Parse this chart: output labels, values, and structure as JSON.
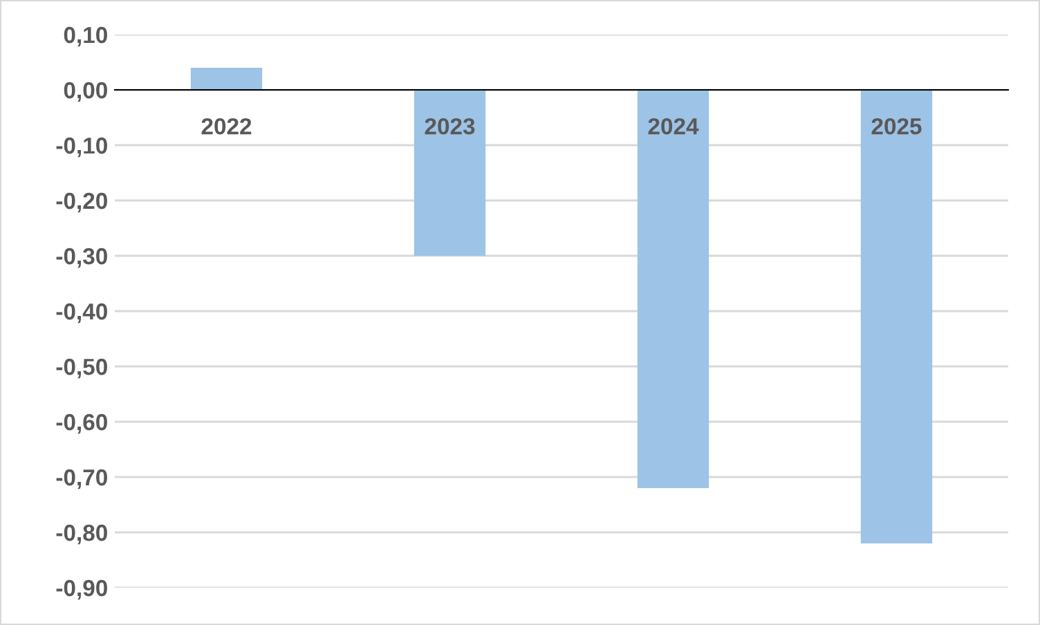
{
  "chart_data": {
    "type": "bar",
    "categories": [
      "2022",
      "2023",
      "2024",
      "2025"
    ],
    "values": [
      0.04,
      -0.3,
      -0.72,
      -0.82
    ],
    "color": "#9dc3e6",
    "ylim": [
      -0.9,
      0.1
    ],
    "yticks": [
      {
        "value": 0.1,
        "label": "0,10"
      },
      {
        "value": 0.0,
        "label": "0,00"
      },
      {
        "value": -0.1,
        "label": "-0,10"
      },
      {
        "value": -0.2,
        "label": "-0,20"
      },
      {
        "value": -0.3,
        "label": "-0,30"
      },
      {
        "value": -0.4,
        "label": "-0,40"
      },
      {
        "value": -0.5,
        "label": "-0,50"
      },
      {
        "value": -0.6,
        "label": "-0,60"
      },
      {
        "value": -0.7,
        "label": "-0,70"
      },
      {
        "value": -0.8,
        "label": "-0,80"
      },
      {
        "value": -0.9,
        "label": "-0,90"
      }
    ],
    "grid": "y",
    "legend": false
  }
}
